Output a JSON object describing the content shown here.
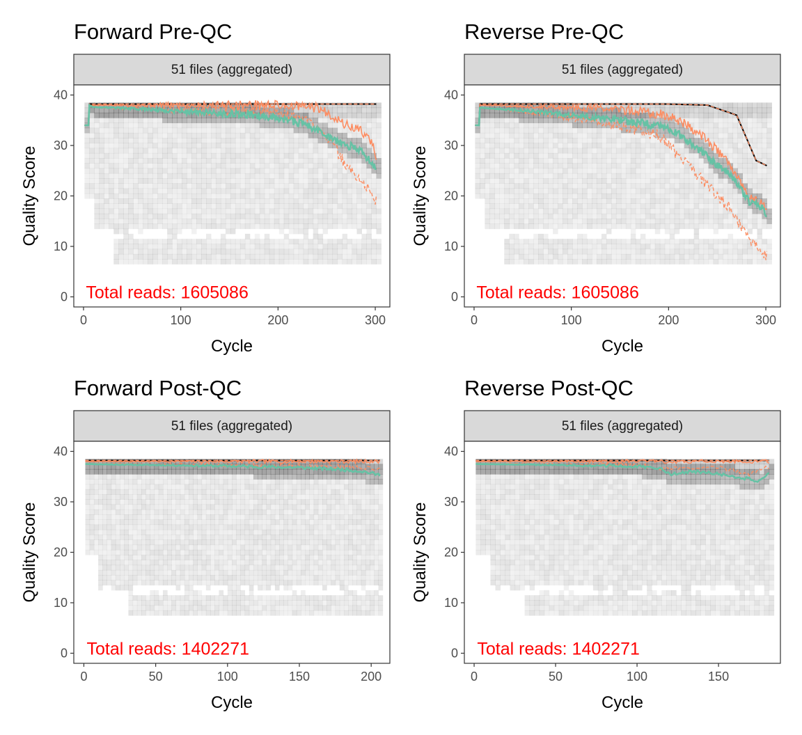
{
  "chart_data": [
    {
      "type": "heatmap",
      "title": "Forward Pre-QC",
      "facet_label": "51 files (aggregated)",
      "xlabel": "Cycle",
      "ylabel": "Quality Score",
      "xlim": [
        -10,
        315
      ],
      "ylim": [
        -2,
        42
      ],
      "x_ticks": [
        0,
        100,
        200,
        300
      ],
      "y_ticks": [
        0,
        10,
        20,
        30,
        40
      ],
      "max_cycle": 301,
      "annotation": "Total reads: 1605086",
      "grid": false,
      "colors": {
        "mean": "#66c2a5",
        "quantiles": "#fc8d62",
        "mode": "#000000",
        "annotation": "#ff0000"
      },
      "mean_quality": [
        [
          1,
          34
        ],
        [
          5,
          34
        ],
        [
          6,
          38
        ],
        [
          10,
          37.6
        ],
        [
          30,
          37.5
        ],
        [
          60,
          37.2
        ],
        [
          100,
          36.8
        ],
        [
          140,
          36.4
        ],
        [
          180,
          36
        ],
        [
          210,
          35.2
        ],
        [
          230,
          34
        ],
        [
          245,
          32.5
        ],
        [
          260,
          31
        ],
        [
          270,
          30
        ],
        [
          280,
          29.5
        ],
        [
          290,
          28
        ],
        [
          301,
          25.5
        ]
      ],
      "q25": [
        [
          1,
          34
        ],
        [
          5,
          34
        ],
        [
          6,
          38
        ],
        [
          20,
          37.5
        ],
        [
          100,
          37
        ],
        [
          200,
          36.5
        ],
        [
          230,
          35
        ],
        [
          245,
          33
        ],
        [
          260,
          29
        ],
        [
          270,
          26
        ],
        [
          280,
          24
        ],
        [
          290,
          22
        ],
        [
          301,
          19
        ]
      ],
      "median": [
        [
          1,
          34
        ],
        [
          5,
          34
        ],
        [
          6,
          38
        ],
        [
          100,
          38
        ],
        [
          200,
          38
        ],
        [
          240,
          37.5
        ],
        [
          255,
          36
        ],
        [
          270,
          34
        ],
        [
          285,
          33
        ],
        [
          295,
          31
        ],
        [
          301,
          28
        ]
      ],
      "q75": [
        [
          1,
          34
        ],
        [
          5,
          34
        ],
        [
          6,
          38.2
        ],
        [
          301,
          38.2
        ]
      ]
    },
    {
      "type": "heatmap",
      "title": "Reverse Pre-QC",
      "facet_label": "51 files (aggregated)",
      "xlabel": "Cycle",
      "ylabel": "Quality Score",
      "xlim": [
        -10,
        315
      ],
      "ylim": [
        -2,
        42
      ],
      "x_ticks": [
        0,
        100,
        200,
        300
      ],
      "y_ticks": [
        0,
        10,
        20,
        30,
        40
      ],
      "max_cycle": 301,
      "annotation": "Total reads: 1605086",
      "grid": false,
      "colors": {
        "mean": "#66c2a5",
        "quantiles": "#fc8d62",
        "mode": "#000000",
        "annotation": "#ff0000"
      },
      "mean_quality": [
        [
          1,
          34
        ],
        [
          5,
          34
        ],
        [
          6,
          37.5
        ],
        [
          20,
          37.3
        ],
        [
          60,
          36.8
        ],
        [
          100,
          36
        ],
        [
          140,
          35.2
        ],
        [
          170,
          34.5
        ],
        [
          200,
          33.5
        ],
        [
          220,
          31
        ],
        [
          235,
          28.5
        ],
        [
          250,
          26
        ],
        [
          265,
          24
        ],
        [
          275,
          21
        ],
        [
          285,
          18.5
        ],
        [
          295,
          18
        ],
        [
          301,
          16
        ]
      ],
      "q25": [
        [
          1,
          34
        ],
        [
          5,
          34
        ],
        [
          6,
          37.5
        ],
        [
          60,
          36.5
        ],
        [
          100,
          35.5
        ],
        [
          150,
          34
        ],
        [
          190,
          32
        ],
        [
          210,
          28
        ],
        [
          230,
          24
        ],
        [
          250,
          20
        ],
        [
          265,
          17
        ],
        [
          280,
          12
        ],
        [
          290,
          10
        ],
        [
          301,
          8
        ]
      ],
      "median": [
        [
          1,
          34
        ],
        [
          5,
          34
        ],
        [
          6,
          38
        ],
        [
          100,
          37.5
        ],
        [
          160,
          37
        ],
        [
          200,
          36
        ],
        [
          220,
          34
        ],
        [
          240,
          31
        ],
        [
          260,
          27
        ],
        [
          275,
          22
        ],
        [
          290,
          19
        ],
        [
          301,
          18
        ]
      ],
      "q75": [
        [
          1,
          34
        ],
        [
          5,
          34
        ],
        [
          6,
          38.2
        ],
        [
          200,
          38.2
        ],
        [
          240,
          38
        ],
        [
          270,
          36
        ],
        [
          290,
          27
        ],
        [
          301,
          26
        ]
      ]
    },
    {
      "type": "heatmap",
      "title": "Forward Post-QC",
      "facet_label": "51 files (aggregated)",
      "xlabel": "Cycle",
      "ylabel": "Quality Score",
      "xlim": [
        -7,
        213
      ],
      "ylim": [
        -2,
        42
      ],
      "x_ticks": [
        0,
        50,
        100,
        150,
        200
      ],
      "y_ticks": [
        0,
        10,
        20,
        30,
        40
      ],
      "max_cycle": 206,
      "annotation": "Total reads: 1402271",
      "grid": false,
      "colors": {
        "mean": "#66c2a5",
        "quantiles": "#fc8d62",
        "mode": "#000000",
        "annotation": "#ff0000"
      },
      "mean_quality": [
        [
          1,
          37.5
        ],
        [
          20,
          37.4
        ],
        [
          50,
          37.3
        ],
        [
          100,
          37.1
        ],
        [
          150,
          36.8
        ],
        [
          180,
          36.4
        ],
        [
          195,
          36
        ],
        [
          206,
          35.3
        ]
      ],
      "q25": [
        [
          1,
          37.6
        ],
        [
          100,
          37.3
        ],
        [
          180,
          37
        ],
        [
          206,
          36.5
        ]
      ],
      "median": [
        [
          1,
          38
        ],
        [
          206,
          38
        ]
      ],
      "q75": [
        [
          1,
          38.2
        ],
        [
          206,
          38.2
        ]
      ]
    },
    {
      "type": "heatmap",
      "title": "Reverse Post-QC",
      "facet_label": "51 files (aggregated)",
      "xlabel": "Cycle",
      "ylabel": "Quality Score",
      "xlim": [
        -6,
        188
      ],
      "ylim": [
        -2,
        42
      ],
      "x_ticks": [
        0,
        50,
        100,
        150
      ],
      "y_ticks": [
        0,
        10,
        20,
        30,
        40
      ],
      "max_cycle": 181,
      "annotation": "Total reads: 1402271",
      "grid": false,
      "colors": {
        "mean": "#66c2a5",
        "quantiles": "#fc8d62",
        "mode": "#000000",
        "annotation": "#ff0000"
      },
      "mean_quality": [
        [
          1,
          37.5
        ],
        [
          50,
          37.3
        ],
        [
          100,
          37
        ],
        [
          115,
          36.5
        ],
        [
          120,
          35.5
        ],
        [
          135,
          36
        ],
        [
          150,
          35.5
        ],
        [
          160,
          35
        ],
        [
          170,
          34.5
        ],
        [
          175,
          34
        ],
        [
          181,
          36
        ]
      ],
      "q25": [
        [
          1,
          37.6
        ],
        [
          100,
          37.3
        ],
        [
          120,
          36.5
        ],
        [
          150,
          36.8
        ],
        [
          170,
          35.5
        ],
        [
          181,
          37
        ]
      ],
      "median": [
        [
          1,
          38
        ],
        [
          181,
          38
        ]
      ],
      "q75": [
        [
          1,
          38.2
        ],
        [
          181,
          38.2
        ]
      ]
    }
  ]
}
